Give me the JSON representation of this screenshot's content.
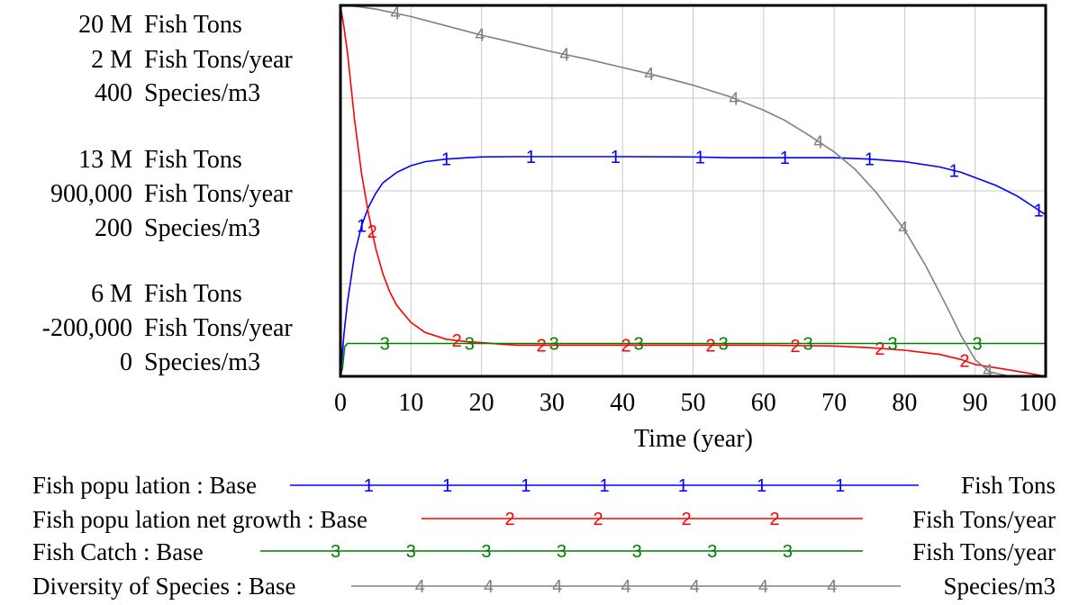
{
  "chart_data": {
    "type": "line",
    "xlabel": "Time (year)",
    "x_ticks": [
      "0",
      "10",
      "20",
      "30",
      "40",
      "50",
      "60",
      "70",
      "80",
      "90",
      "100"
    ],
    "xlim": [
      0,
      100
    ],
    "grid": true,
    "legend_placement": "bottom",
    "axis_scales": [
      {
        "top": "20 M",
        "mid": "13 M",
        "bottom": "6 M",
        "unit": "Fish Tons",
        "min": 6000000,
        "max": 20000000
      },
      {
        "top": "2 M",
        "mid": "900,000",
        "bottom": "-200,000",
        "unit": "Fish Tons/year",
        "min": -200000,
        "max": 2000000
      },
      {
        "top": "400",
        "mid": "200",
        "bottom": "0",
        "unit": "Species/m3",
        "min": 0,
        "max": 400
      }
    ],
    "series": [
      {
        "name": "Fish popu lation : Base",
        "marker": "1",
        "unit": "Fish Tons",
        "color": "#0000ff",
        "x": [
          0,
          0.5,
          1,
          2,
          3,
          4,
          5,
          6,
          8,
          10,
          12,
          15,
          18,
          20,
          25,
          30,
          40,
          50,
          55,
          60,
          70,
          75,
          80,
          85,
          88,
          90,
          93,
          96,
          100
        ],
        "y": [
          6000000,
          7600000,
          8800000,
          10600000,
          11700000,
          12400000,
          12900000,
          13300000,
          13700000,
          13950000,
          14100000,
          14200000,
          14250000,
          14280000,
          14290000,
          14290000,
          14290000,
          14280000,
          14250000,
          14250000,
          14250000,
          14200000,
          14100000,
          13900000,
          13700000,
          13500000,
          13200000,
          12800000,
          12100000
        ]
      },
      {
        "name": "Fish popu lation net growth : Base",
        "marker": "2",
        "unit": "Fish Tons/year",
        "color": "#ff0000",
        "x": [
          0,
          0.5,
          1,
          2,
          3,
          4,
          5,
          6,
          7,
          8,
          10,
          12,
          15,
          18,
          20,
          23,
          25,
          40,
          55,
          60,
          70,
          75,
          80,
          85,
          88,
          90,
          93,
          96,
          100
        ],
        "y": [
          2000000,
          1870000,
          1720000,
          1320000,
          1000000,
          760000,
          560000,
          410000,
          300000,
          220000,
          120000,
          60000,
          20000,
          5000,
          0,
          -10000,
          -15000,
          -15000,
          -15000,
          -15000,
          -20000,
          -30000,
          -45000,
          -70000,
          -100000,
          -130000,
          -150000,
          -170000,
          -200000
        ]
      },
      {
        "name": "Fish Catch : Base",
        "marker": "3",
        "unit": "Fish Tons/year",
        "color": "#008000",
        "x": [
          0,
          0.3,
          0.6,
          1,
          2,
          5,
          10,
          20,
          40,
          60,
          80,
          100
        ],
        "y": [
          -200000,
          -150000,
          -25000,
          -5000,
          -5000,
          -5000,
          -5000,
          -5000,
          -5000,
          -5000,
          -5000,
          -5000
        ]
      },
      {
        "name": "Diversity of Species : Base",
        "marker": "4",
        "unit": "Species/m3",
        "color": "#808080",
        "x": [
          0,
          2,
          5,
          10,
          15,
          20,
          25,
          30,
          35,
          40,
          45,
          50,
          55,
          60,
          63,
          66,
          70,
          73,
          76,
          80,
          83,
          86,
          88,
          90,
          92,
          95,
          100
        ],
        "y": [
          400,
          399,
          396,
          388,
          378,
          368,
          359,
          350,
          342,
          333,
          324,
          314,
          302,
          287,
          276,
          262,
          242,
          223,
          198,
          158,
          119,
          75,
          44,
          18,
          5,
          0,
          0
        ]
      }
    ],
    "legend": [
      {
        "label": "Fish popu lation : Base",
        "unit": "Fish Tons"
      },
      {
        "label": "Fish popu lation net growth : Base",
        "unit": "Fish Tons/year"
      },
      {
        "label": "Fish Catch : Base",
        "unit": "Fish Tons/year"
      },
      {
        "label": "Diversity of Species : Base",
        "unit": "Species/m3"
      }
    ]
  }
}
